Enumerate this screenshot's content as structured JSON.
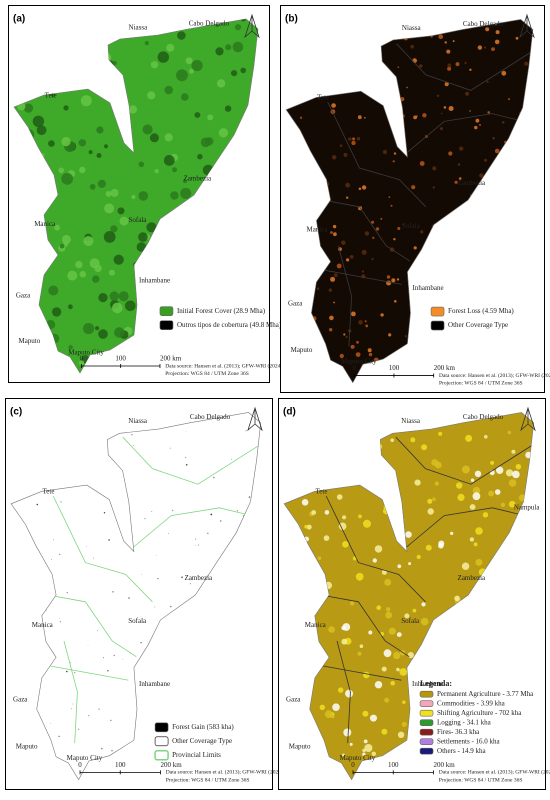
{
  "panels": [
    {
      "label": "(a)",
      "places": [
        "Niassa",
        "Cabo Delgado",
        "Tete",
        "Zambezia",
        "Manica",
        "Sofala",
        "Inhambane",
        "Gaza",
        "Maputo",
        "Maputo City"
      ],
      "legend": [
        {
          "text": "Initial Forest Cover (28.9 Mha)",
          "color": "#3a9e23"
        },
        {
          "text": "Outros tipos de cobertura (49.8 Mha)",
          "color": "#000000"
        }
      ],
      "scale": [
        "0",
        "100",
        "200 km"
      ],
      "source": [
        "Data source: Hansen et al. (2013); GFW-WRI (2024)",
        "Projection: WGS 84 / UTM Zone 36S"
      ]
    },
    {
      "label": "(b)",
      "places": [
        "Niassa",
        "Cabo Delgado",
        "Tete",
        "Zambezia",
        "Manica",
        "Sofala",
        "Inhambane",
        "Gaza",
        "Maputo",
        "Maputo City"
      ],
      "legend": [
        {
          "text": "Forest Loss (4.59 Mha)",
          "color": "#f28c28"
        },
        {
          "text": "Other Coverage Type",
          "color": "#000000"
        }
      ],
      "scale": [
        "0",
        "100",
        "200 km"
      ],
      "source": [
        "Data source: Hansen et al. (2013); GFW-WRI (2024)",
        "Projection: WGS 84 / UTM Zone 36S"
      ]
    },
    {
      "label": "(c)",
      "places": [
        "Niassa",
        "Cabo Delgado",
        "Tete",
        "Zambezia",
        "Manica",
        "Sofala",
        "Inhambane",
        "Gaza",
        "Maputo",
        "Maputo City"
      ],
      "legend": [
        {
          "text": "Forest Gain (583 kha)",
          "color": "#000000"
        },
        {
          "text": "Other Coverage Type",
          "color": "#ffffff"
        },
        {
          "text": "Provincial Limits",
          "color": "#7ed67e"
        }
      ],
      "scale": [
        "0",
        "100",
        "200 km"
      ],
      "source": [
        "Data source: Hansen et al. (2013); GFW-WRI (2024)",
        "Projection: WGS 84 / UTM Zone 36S"
      ]
    },
    {
      "label": "(d)",
      "places": [
        "Niassa",
        "Cabo Delgado",
        "Tete",
        "Zambezia",
        "Manica",
        "Sofala",
        "Inhambane",
        "Gaza",
        "Maputo",
        "Maputo City",
        "Nampula"
      ],
      "legend_title": "Legenda:",
      "legend": [
        {
          "text": "Permanent Agriculture - 3.77 Mha",
          "color": "#b8960c"
        },
        {
          "text": "Commodities - 3.99 kha",
          "color": "#f4a6b8"
        },
        {
          "text": "Shifting Agriculture - 702 kha",
          "color": "#f0e020"
        },
        {
          "text": "Logging - 34.1 kha",
          "color": "#2e9a2e"
        },
        {
          "text": "Fires- 36.3 kha",
          "color": "#8b1a1a"
        },
        {
          "text": "Settlements - 16.0 kha",
          "color": "#b07ee0"
        },
        {
          "text": "Others - 14.9 kha",
          "color": "#1a1a7a"
        }
      ],
      "scale": [
        "0",
        "100",
        "200 km"
      ],
      "source": [
        "Data source: Hansen et al. (2013); GFW-WRI (2024)",
        "Projection: WGS 84 / UTM Zone 36S"
      ]
    }
  ]
}
